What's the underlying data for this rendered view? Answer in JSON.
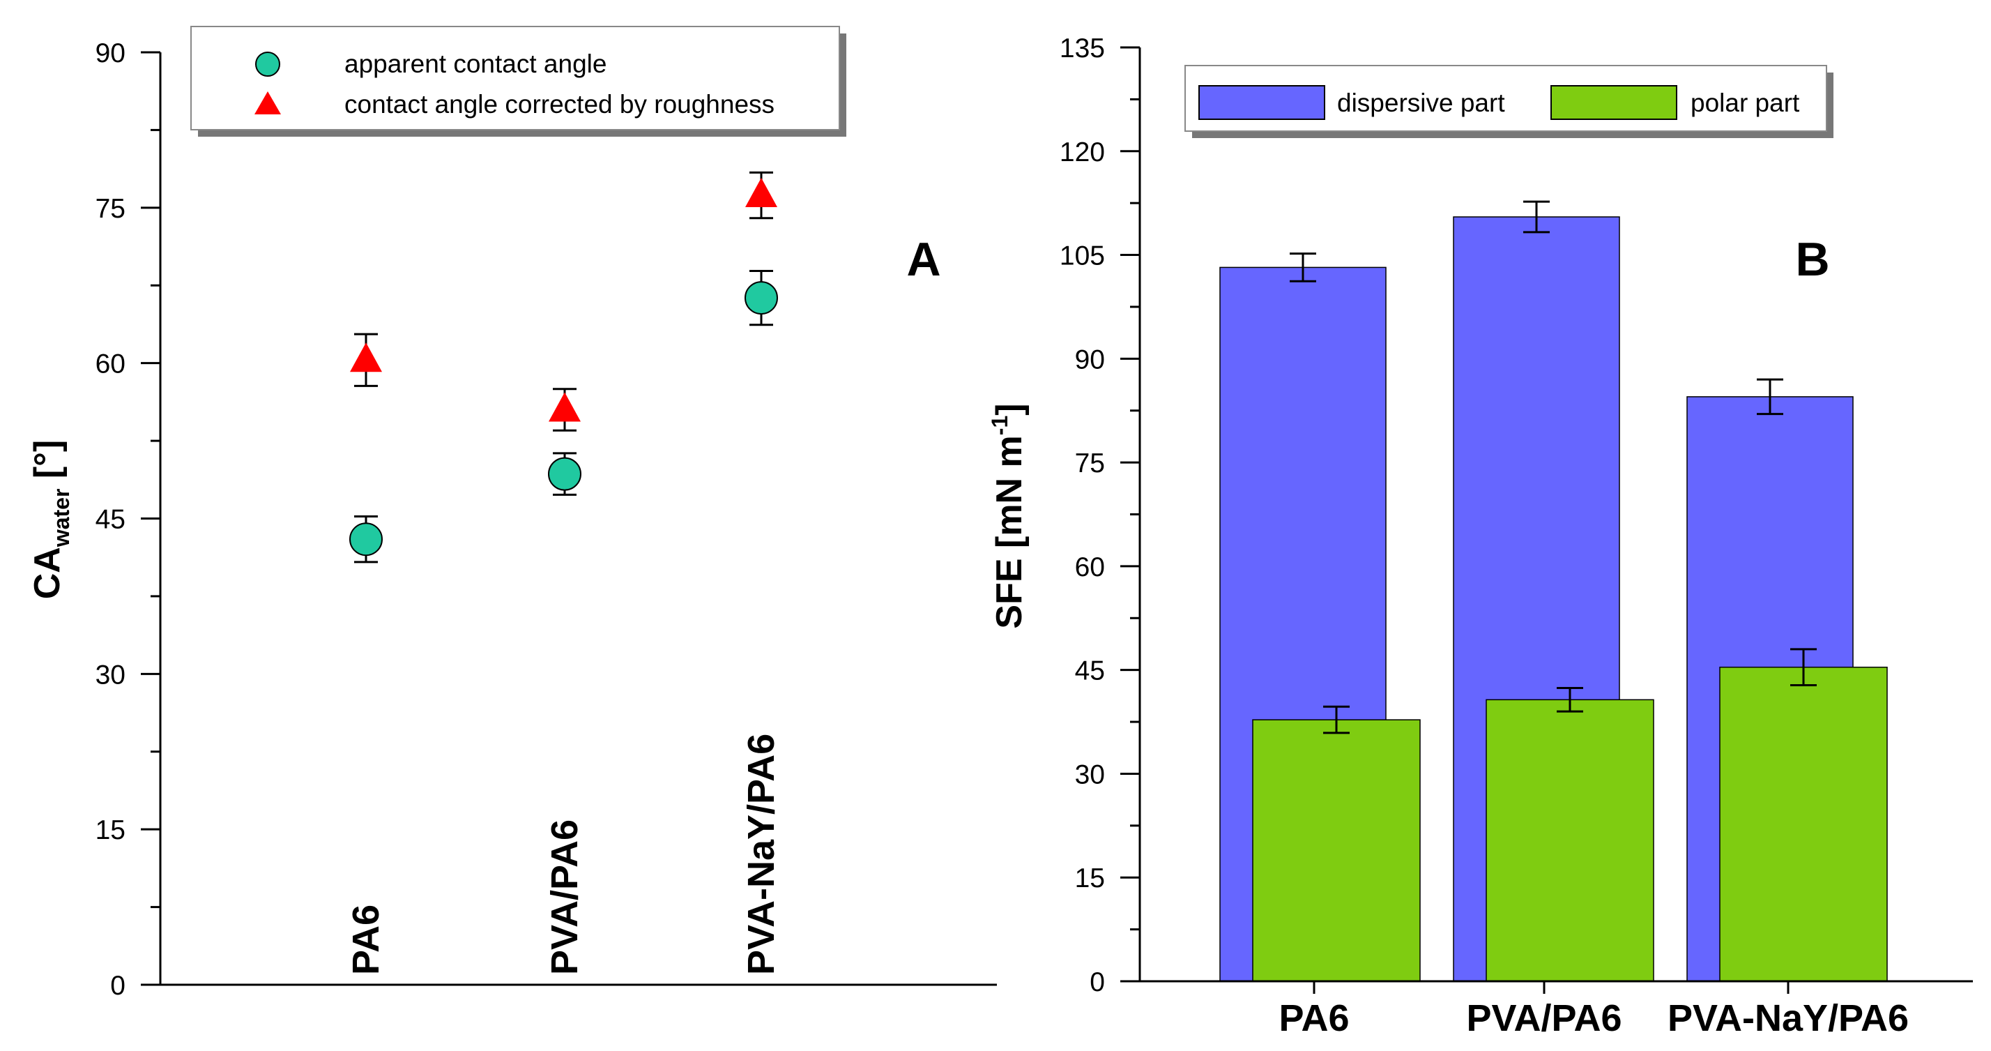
{
  "colors": {
    "circle": "#20C9A0",
    "triangle": "#FF0000",
    "dispersive": "#6666FF",
    "polar": "#7FCC11"
  },
  "chart_data": [
    {
      "type": "scatter",
      "panel_label": "A",
      "ylabel_main": "CA",
      "ylabel_sub": "water",
      "ylabel_unit": " [°]",
      "ylim": [
        0,
        90
      ],
      "yticks": [
        "0",
        "15",
        "30",
        "45",
        "60",
        "75",
        "90"
      ],
      "categories": [
        "PA6",
        "PVA/PA6",
        "PVA-NaY/PA6"
      ],
      "legend_position": "top",
      "series": [
        {
          "name": "apparent contact angle",
          "marker": "circle",
          "values": [
            43.0,
            49.3,
            66.3
          ],
          "errors": [
            2.2,
            2.0,
            2.6
          ]
        },
        {
          "name": "contact angle corrected by roughness",
          "marker": "triangle",
          "values": [
            60.3,
            55.5,
            76.2
          ],
          "errors": [
            2.5,
            2.0,
            2.2
          ]
        }
      ]
    },
    {
      "type": "bar",
      "panel_label": "B",
      "ylabel_main": "SFE [mN m",
      "ylabel_sup": "-1",
      "ylabel_end": "]",
      "ylim": [
        0,
        135
      ],
      "yticks": [
        "0",
        "15",
        "30",
        "45",
        "60",
        "75",
        "90",
        "105",
        "120",
        "135"
      ],
      "categories": [
        "PA6",
        "PVA/PA6",
        "PVA-NaY/PA6"
      ],
      "legend_position": "top",
      "series": [
        {
          "name": "dispersive part",
          "values": [
            103.2,
            110.5,
            84.5
          ],
          "errors": [
            2.0,
            2.2,
            2.5
          ]
        },
        {
          "name": "polar part",
          "values": [
            37.8,
            40.7,
            45.4
          ],
          "errors": [
            1.9,
            1.7,
            2.6
          ]
        }
      ]
    }
  ]
}
